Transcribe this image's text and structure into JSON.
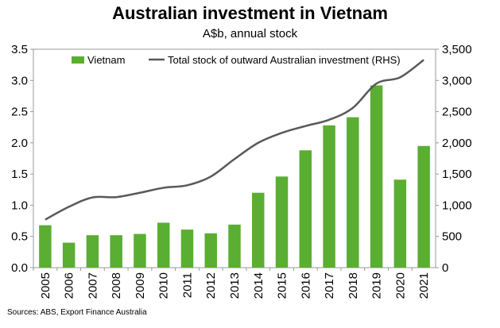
{
  "title": "Australian investment in Vietnam",
  "subtitle": "A$b, annual stock",
  "source": "Sources: ABS, Export Finance Australia",
  "colors": {
    "bar": "#5aae32",
    "line": "#58595b",
    "axis": "#999999"
  },
  "chart_data": {
    "type": "bar",
    "categories": [
      "2005",
      "2006",
      "2007",
      "2008",
      "2009",
      "2010",
      "2011",
      "2012",
      "2013",
      "2014",
      "2015",
      "2016",
      "2017",
      "2018",
      "2019",
      "2020",
      "2021"
    ],
    "series": [
      {
        "name": "Vietnam",
        "type": "bar",
        "axis": "left",
        "values": [
          0.68,
          0.4,
          0.52,
          0.52,
          0.54,
          0.72,
          0.61,
          0.55,
          0.69,
          1.2,
          1.46,
          1.88,
          2.28,
          2.41,
          2.92,
          1.41,
          1.95
        ]
      },
      {
        "name": "Total stock of outward Australian investment (RHS)",
        "type": "line",
        "axis": "right",
        "values": [
          770,
          975,
          1125,
          1130,
          1200,
          1280,
          1320,
          1460,
          1740,
          2000,
          2160,
          2270,
          2370,
          2560,
          2950,
          3050,
          3330
        ]
      }
    ],
    "yleft": {
      "min": 0,
      "max": 3.5,
      "ticks": [
        "0.0",
        "0.5",
        "1.0",
        "1.5",
        "2.0",
        "2.5",
        "3.0",
        "3.5"
      ]
    },
    "yright": {
      "min": 0,
      "max": 3500,
      "ticks": [
        "0",
        "500",
        "1,000",
        "1,500",
        "2,000",
        "2,500",
        "3,000",
        "3,500"
      ]
    },
    "legend": "top-left"
  }
}
